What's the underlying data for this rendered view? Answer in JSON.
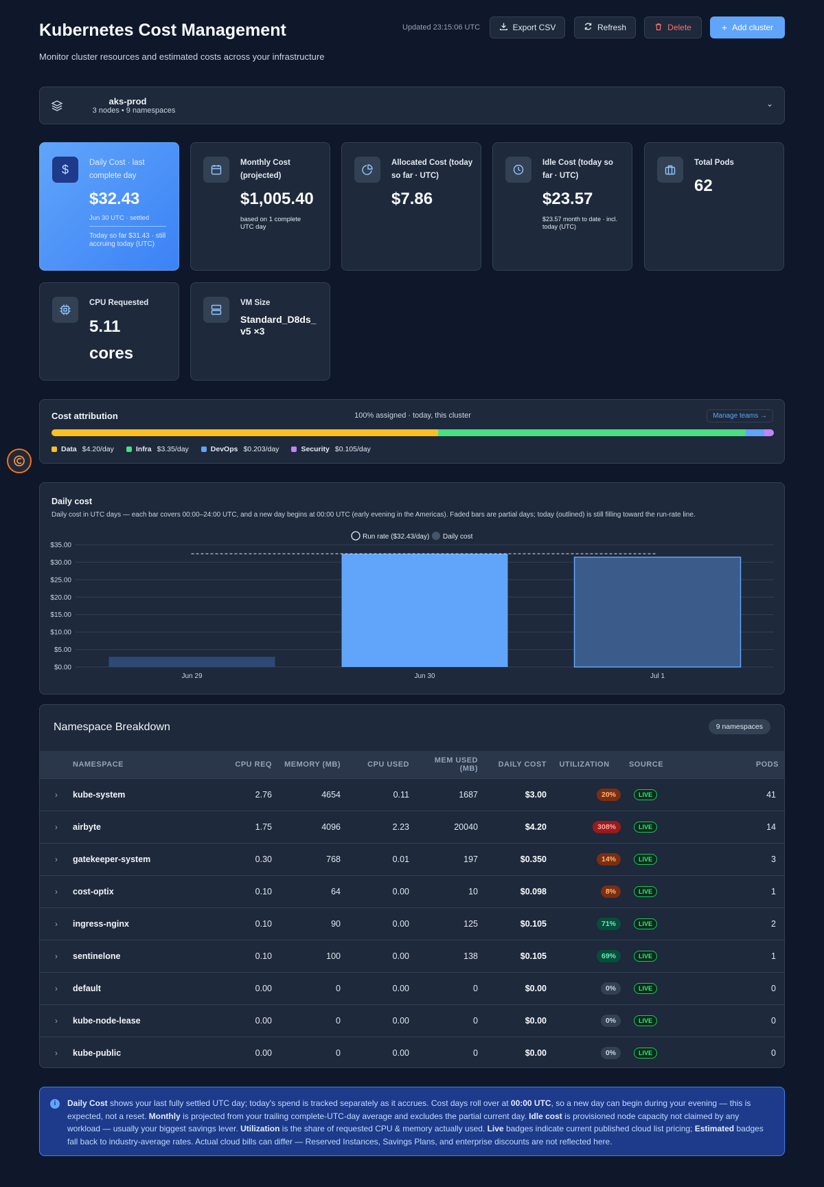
{
  "header": {
    "title": "Kubernetes Cost Management",
    "subtitle": "Monitor cluster resources and estimated costs across your infrastructure",
    "updated": "Updated 23:15:06 UTC",
    "export_label": "Export CSV",
    "refresh_label": "Refresh",
    "delete_label": "Delete",
    "add_label": "Add cluster"
  },
  "cluster": {
    "name": "aks-prod",
    "meta": "3 nodes • 9 namespaces"
  },
  "cards": {
    "daily": {
      "label": "Daily Cost · last complete day",
      "value": "$32.43",
      "note": "Jun 30 UTC · settled",
      "extra": "Today so far $31.43 · still accruing today (UTC)"
    },
    "monthly": {
      "label": "Monthly Cost (projected)",
      "value": "$1,005.40",
      "note": "based on 1 complete UTC day"
    },
    "allocated": {
      "label": "Allocated Cost (today so far · UTC)",
      "value": "$7.86"
    },
    "idle": {
      "label": "Idle Cost (today so far · UTC)",
      "value": "$23.57",
      "note": "$23.57 month to date · incl. today (UTC)"
    },
    "pods": {
      "label": "Total Pods",
      "value": "62"
    },
    "cpu": {
      "label": "CPU Requested",
      "value_line1": "5.11",
      "value_line2": "cores"
    },
    "vm": {
      "label": "VM Size",
      "value": "Standard_D8ds_ v5 ×3"
    }
  },
  "attribution": {
    "title": "Cost attribution",
    "status": "100% assigned · today, this cluster",
    "manage_label": "Manage teams →",
    "teams": [
      {
        "name": "Data",
        "cost": "$4.20/day",
        "share": 53.5,
        "color": "#fbbf24"
      },
      {
        "name": "Infra",
        "cost": "$3.35/day",
        "share": 42.6,
        "color": "#4ade80"
      },
      {
        "name": "DevOps",
        "cost": "$0.203/day",
        "share": 2.6,
        "color": "#60a5fa"
      },
      {
        "name": "Security",
        "cost": "$0.105/day",
        "share": 1.3,
        "color": "#c084fc"
      }
    ]
  },
  "chart_data": {
    "type": "bar",
    "title": "Daily cost",
    "subtitle": "Daily cost in UTC days — each bar covers 00:00–24:00 UTC, and a new day begins at 00:00 UTC (early evening in the Americas). Faded bars are partial days; today (outlined) is still filling toward the run-rate line.",
    "categories": [
      "Jun 29",
      "Jun 30",
      "Jul 1"
    ],
    "values": [
      2.9,
      32.43,
      31.43
    ],
    "bar_states": [
      "partial",
      "complete",
      "today"
    ],
    "run_rate": 32.43,
    "legend": [
      "Run rate ($32.43/day)",
      "Daily cost"
    ],
    "y_ticks": [
      "$0.00",
      "$5.00",
      "$10.00",
      "$15.00",
      "$20.00",
      "$25.00",
      "$30.00",
      "$35.00"
    ],
    "ylim": [
      0,
      35
    ],
    "grid": true,
    "colors": {
      "complete": "#60a5fa",
      "partial": "#2d4a75",
      "today": "#3b5b8a",
      "today_outline": "#60a5fa"
    }
  },
  "namespaces": {
    "title": "Namespace Breakdown",
    "count_badge": "9 namespaces",
    "columns": [
      "NAMESPACE",
      "CPU REQ",
      "MEMORY (MB)",
      "CPU USED",
      "MEM USED (MB)",
      "DAILY COST",
      "UTILIZATION",
      "SOURCE",
      "PODS"
    ],
    "rows": [
      {
        "name": "kube-system",
        "cpu_req": "2.76",
        "mem": "4654",
        "cpu_used": "0.11",
        "mem_used": "1687",
        "cost": "$3.00",
        "util": "20%",
        "util_level": "low",
        "source": "LIVE",
        "pods": "41"
      },
      {
        "name": "airbyte",
        "cpu_req": "1.75",
        "mem": "4096",
        "cpu_used": "2.23",
        "mem_used": "20040",
        "cost": "$4.20",
        "util": "308%",
        "util_level": "over",
        "source": "LIVE",
        "pods": "14"
      },
      {
        "name": "gatekeeper-system",
        "cpu_req": "0.30",
        "mem": "768",
        "cpu_used": "0.01",
        "mem_used": "197",
        "cost": "$0.350",
        "util": "14%",
        "util_level": "low",
        "source": "LIVE",
        "pods": "3"
      },
      {
        "name": "cost-optix",
        "cpu_req": "0.10",
        "mem": "64",
        "cpu_used": "0.00",
        "mem_used": "10",
        "cost": "$0.098",
        "util": "8%",
        "util_level": "low",
        "source": "LIVE",
        "pods": "1"
      },
      {
        "name": "ingress-nginx",
        "cpu_req": "0.10",
        "mem": "90",
        "cpu_used": "0.00",
        "mem_used": "125",
        "cost": "$0.105",
        "util": "71%",
        "util_level": "good",
        "source": "LIVE",
        "pods": "2"
      },
      {
        "name": "sentinelone",
        "cpu_req": "0.10",
        "mem": "100",
        "cpu_used": "0.00",
        "mem_used": "138",
        "cost": "$0.105",
        "util": "69%",
        "util_level": "good",
        "source": "LIVE",
        "pods": "1"
      },
      {
        "name": "default",
        "cpu_req": "0.00",
        "mem": "0",
        "cpu_used": "0.00",
        "mem_used": "0",
        "cost": "$0.00",
        "util": "0%",
        "util_level": "none",
        "source": "LIVE",
        "pods": "0"
      },
      {
        "name": "kube-node-lease",
        "cpu_req": "0.00",
        "mem": "0",
        "cpu_used": "0.00",
        "mem_used": "0",
        "cost": "$0.00",
        "util": "0%",
        "util_level": "none",
        "source": "LIVE",
        "pods": "0"
      },
      {
        "name": "kube-public",
        "cpu_req": "0.00",
        "mem": "0",
        "cpu_used": "0.00",
        "mem_used": "0",
        "cost": "$0.00",
        "util": "0%",
        "util_level": "none",
        "source": "LIVE",
        "pods": "0"
      }
    ]
  },
  "util_colors": {
    "low": {
      "bg": "#7c2d12",
      "fg": "#fdba74"
    },
    "over": {
      "bg": "#991b1b",
      "fg": "#fca5a5"
    },
    "good": {
      "bg": "#064e3b",
      "fg": "#6ee7b7"
    },
    "none": {
      "bg": "#334155",
      "fg": "#cbd5e1"
    }
  },
  "note": [
    {
      "b": "Daily Cost"
    },
    {
      "t": " shows your last fully settled UTC day; today's spend is tracked separately as it accrues. Cost days roll over at "
    },
    {
      "b": "00:00 UTC"
    },
    {
      "t": ", so a new day can begin during your evening — this is expected, not a reset. "
    },
    {
      "b": "Monthly"
    },
    {
      "t": " is projected from your trailing complete-UTC-day average and excludes the partial current day. "
    },
    {
      "b": "Idle cost"
    },
    {
      "t": " is provisioned node capacity not claimed by any workload — usually your biggest savings lever. "
    },
    {
      "b": "Utilization"
    },
    {
      "t": " is the share of requested CPU & memory actually used. "
    },
    {
      "b": "Live"
    },
    {
      "t": " badges indicate current published cloud list pricing; "
    },
    {
      "b": "Estimated"
    },
    {
      "t": " badges fall back to industry-average rates. Actual cloud bills can differ — Reserved Instances, Savings Plans, and enterprise discounts are not reflected here."
    }
  ]
}
